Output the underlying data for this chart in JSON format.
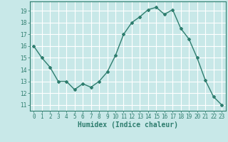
{
  "x": [
    0,
    1,
    2,
    3,
    4,
    5,
    6,
    7,
    8,
    9,
    10,
    11,
    12,
    13,
    14,
    15,
    16,
    17,
    18,
    19,
    20,
    21,
    22,
    23
  ],
  "y": [
    16,
    15,
    14.2,
    13,
    13,
    12.3,
    12.8,
    12.5,
    13,
    13.8,
    15.2,
    17,
    18,
    18.5,
    19.1,
    19.3,
    18.7,
    19.1,
    17.5,
    16.6,
    15,
    13.1,
    11.7,
    11
  ],
  "line_color": "#2e7d6e",
  "marker": "D",
  "marker_size": 2,
  "linewidth": 1.0,
  "xlabel": "Humidex (Indice chaleur)",
  "xlabel_fontsize": 7,
  "background_color": "#c8e8e8",
  "grid_color": "#ffffff",
  "ylim": [
    10.5,
    19.8
  ],
  "xlim": [
    -0.5,
    23.5
  ],
  "yticks": [
    11,
    12,
    13,
    14,
    15,
    16,
    17,
    18,
    19
  ],
  "xticks": [
    0,
    1,
    2,
    3,
    4,
    5,
    6,
    7,
    8,
    9,
    10,
    11,
    12,
    13,
    14,
    15,
    16,
    17,
    18,
    19,
    20,
    21,
    22,
    23
  ],
  "tick_fontsize": 5.5,
  "spine_color": "#2e7d6e"
}
